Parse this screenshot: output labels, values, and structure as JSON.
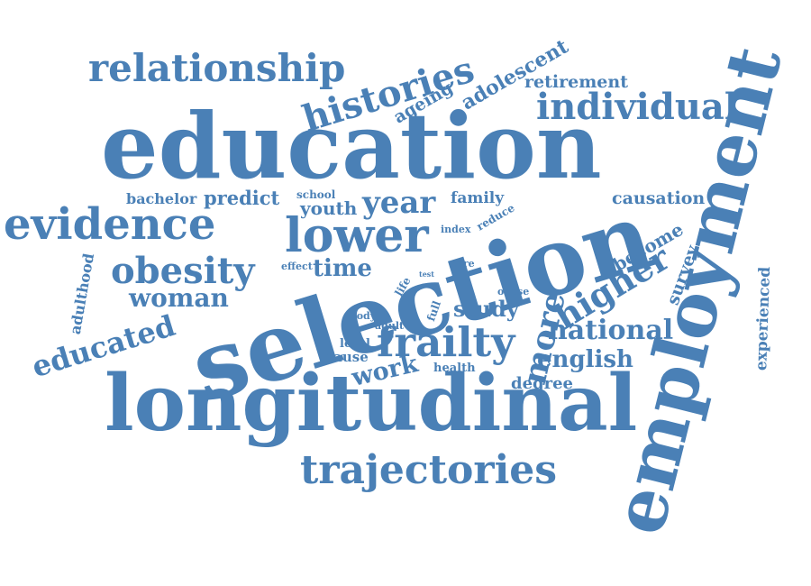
{
  "colors": {
    "text": "#4a80b6",
    "background": "#ffffff"
  },
  "words": {
    "education": "education",
    "selection": "selection",
    "longitudinal": "longitudinal",
    "employment": "employment",
    "trajectories": "trajectories",
    "relationship": "relationship",
    "evidence": "evidence",
    "lower": "lower",
    "obesity": "obesity",
    "frailty": "frailty",
    "histories": "histories",
    "individual": "individual",
    "woman": "woman",
    "year": "year",
    "higher": "higher",
    "national": "national",
    "educated": "educated",
    "more": "more",
    "work": "work",
    "english": "english",
    "time": "time",
    "study": "study",
    "adolescent": "adolescent",
    "ageing": "ageing",
    "retirement": "retirement",
    "causation": "causation",
    "become": "become",
    "survey": "survey",
    "experienced": "experienced",
    "adulthood": "adulthood",
    "bachelor": "bachelor",
    "predict": "predict",
    "youth": "youth",
    "school": "school",
    "family": "family",
    "reduce": "reduce",
    "index": "index",
    "effect": "effect",
    "test": "test",
    "care": "care",
    "life": "life",
    "full": "full",
    "obese": "obese",
    "body": "body",
    "adult": "adult",
    "level": "level",
    "cause": "cause",
    "health": "health",
    "degree": "degree"
  }
}
